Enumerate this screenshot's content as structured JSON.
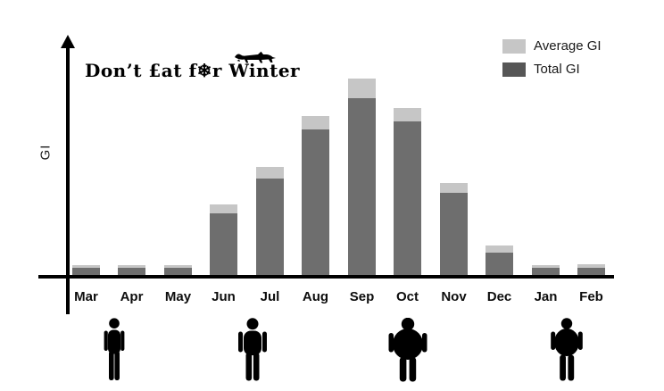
{
  "logo": {
    "text": "Don't Eat for Winter",
    "stylized": "Don’t £at f❄r Winter"
  },
  "chart_data": {
    "type": "bar",
    "title": "Don't Eat for Winter",
    "xlabel": "",
    "ylabel": "GI",
    "categories": [
      "Mar",
      "Apr",
      "May",
      "Jun",
      "Jul",
      "Aug",
      "Sep",
      "Oct",
      "Nov",
      "Dec",
      "Jan",
      "Feb"
    ],
    "series": [
      {
        "name": "Average GI",
        "color": "#c6c6c6",
        "values": [
          5,
          5,
          5,
          36,
          55,
          81,
          100,
          85,
          47,
          15,
          5,
          5.5
        ]
      },
      {
        "name": "Total GI",
        "color": "#6e6e6e",
        "values": [
          3.5,
          3.5,
          3.6,
          31.5,
          49,
          74,
          90,
          78,
          42,
          11.5,
          3.6,
          3.7
        ]
      }
    ],
    "ylim": [
      0,
      100
    ],
    "y_tick_labels": [],
    "grid": false,
    "legend_position": "top-right",
    "note": "No numeric y-axis scale shown; values are relative with tallest bar (Sep) = 100. Average GI bars render behind Total GI bars and appear as light caps."
  },
  "legend": {
    "items": [
      {
        "label": "Average GI",
        "color": "#c6c6c6"
      },
      {
        "label": "Total GI",
        "color": "#565656"
      }
    ]
  },
  "figures": {
    "items": [
      {
        "name": "thin-person"
      },
      {
        "name": "average-person"
      },
      {
        "name": "obese-person"
      },
      {
        "name": "overweight-person"
      }
    ]
  },
  "colors": {
    "background": "#ffffff",
    "axis": "#000000",
    "bar_total": "#6e6e6e",
    "bar_average": "#c6c6c6",
    "text": "#0d0d0d"
  }
}
